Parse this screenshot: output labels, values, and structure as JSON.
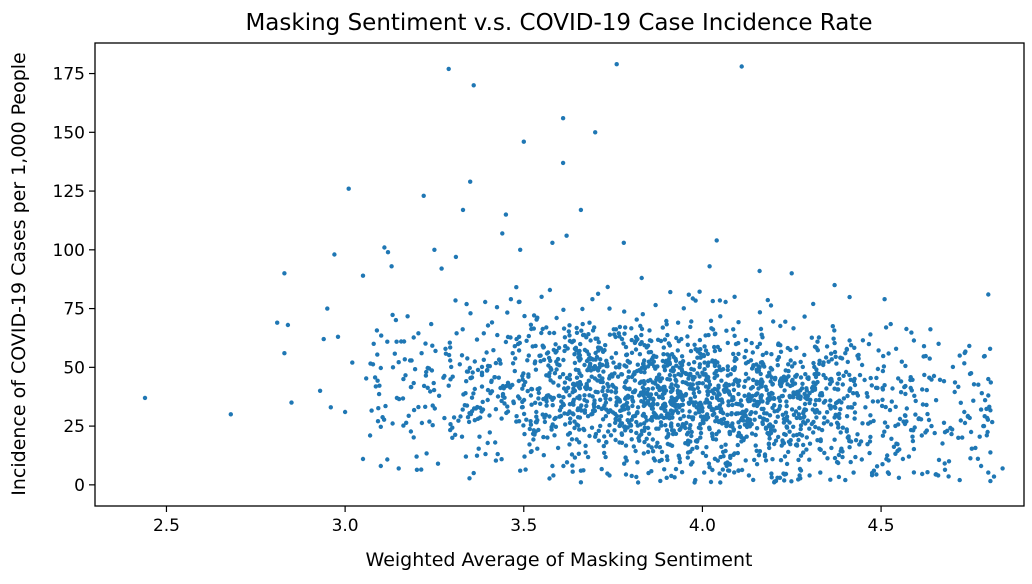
{
  "chart_data": {
    "type": "scatter",
    "title": "Masking Sentiment v.s. COVID-19 Case Incidence Rate",
    "xlabel": "Weighted Average of Masking Sentiment",
    "ylabel": "Incidence of COVID-19 Cases per 1,000 People",
    "xlim": [
      2.3,
      4.9
    ],
    "ylim": [
      -9,
      188
    ],
    "xticks": [
      2.5,
      3.0,
      3.5,
      4.0,
      4.5
    ],
    "xtick_labels": [
      "2.5",
      "3.0",
      "3.5",
      "4.0",
      "4.5"
    ],
    "yticks": [
      0,
      25,
      50,
      75,
      100,
      125,
      150,
      175
    ],
    "ytick_labels": [
      "0",
      "25",
      "50",
      "75",
      "100",
      "125",
      "150",
      "175"
    ],
    "grid": false,
    "color": "#1f77b4",
    "points": [
      [
        2.44,
        37
      ],
      [
        2.68,
        30
      ],
      [
        2.81,
        69
      ],
      [
        2.83,
        90
      ],
      [
        2.83,
        56
      ],
      [
        2.84,
        68
      ],
      [
        2.85,
        35
      ],
      [
        2.94,
        62
      ],
      [
        2.95,
        75
      ],
      [
        2.97,
        98
      ],
      [
        2.98,
        63
      ],
      [
        3.01,
        126
      ],
      [
        3.02,
        52
      ],
      [
        3.05,
        89
      ],
      [
        3.08,
        60
      ],
      [
        3.11,
        101
      ],
      [
        3.12,
        99
      ],
      [
        3.13,
        93
      ],
      [
        3.22,
        123
      ],
      [
        3.25,
        100
      ],
      [
        3.27,
        92
      ],
      [
        3.29,
        177
      ],
      [
        3.31,
        97
      ],
      [
        3.33,
        117
      ],
      [
        3.35,
        129
      ],
      [
        3.36,
        170
      ],
      [
        3.44,
        107
      ],
      [
        3.45,
        115
      ],
      [
        3.49,
        100
      ],
      [
        3.5,
        146
      ],
      [
        3.55,
        80
      ],
      [
        3.58,
        103
      ],
      [
        3.61,
        156
      ],
      [
        3.61,
        137
      ],
      [
        3.62,
        106
      ],
      [
        3.66,
        117
      ],
      [
        3.7,
        150
      ],
      [
        3.74,
        75
      ],
      [
        3.76,
        179
      ],
      [
        3.78,
        103
      ],
      [
        3.83,
        88
      ],
      [
        4.02,
        93
      ],
      [
        4.04,
        104
      ],
      [
        4.09,
        80
      ],
      [
        4.11,
        178
      ],
      [
        4.16,
        91
      ],
      [
        4.25,
        90
      ],
      [
        4.31,
        77
      ],
      [
        4.37,
        85
      ],
      [
        4.47,
        64
      ],
      [
        4.51,
        79
      ],
      [
        4.62,
        59
      ],
      [
        4.72,
        55
      ],
      [
        4.78,
        32
      ],
      [
        4.8,
        81
      ],
      [
        4.8,
        38
      ],
      [
        4.84,
        7
      ],
      [
        4.78,
        8
      ],
      [
        4.72,
        2
      ],
      [
        4.66,
        4
      ],
      [
        4.55,
        3
      ],
      [
        4.48,
        6
      ],
      [
        4.4,
        2
      ],
      [
        4.3,
        4
      ],
      [
        4.21,
        3
      ],
      [
        4.13,
        4
      ],
      [
        4.05,
        1
      ],
      [
        3.98,
        2
      ],
      [
        3.9,
        3
      ],
      [
        3.82,
        1
      ],
      [
        3.74,
        4
      ],
      [
        3.66,
        6
      ],
      [
        3.58,
        8
      ],
      [
        3.49,
        6
      ],
      [
        3.36,
        5
      ],
      [
        3.26,
        9
      ],
      [
        3.15,
        7
      ],
      [
        3.1,
        8
      ],
      [
        3.05,
        11
      ],
      [
        3.0,
        31
      ],
      [
        2.96,
        33
      ],
      [
        2.93,
        40
      ],
      [
        3.07,
        21
      ],
      [
        3.2,
        12
      ],
      [
        3.3,
        20
      ],
      [
        3.42,
        18
      ],
      [
        3.52,
        14
      ]
    ]
  }
}
